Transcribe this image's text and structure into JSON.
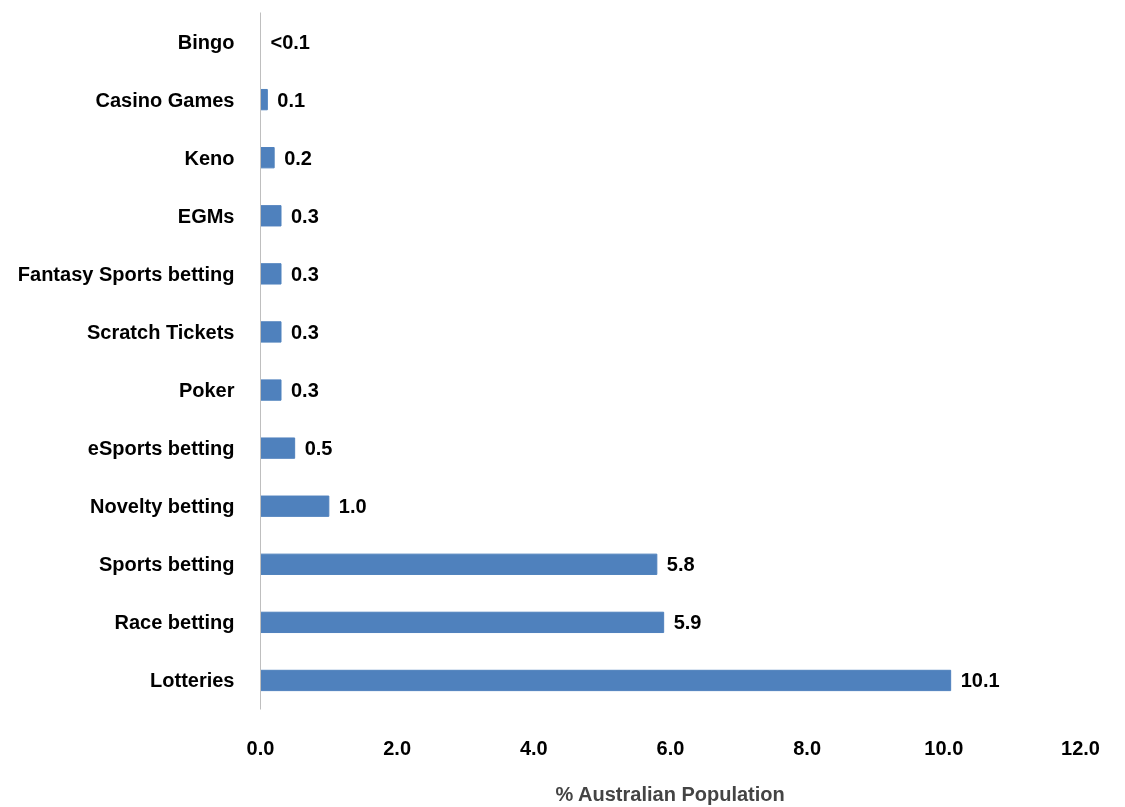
{
  "chart_data": {
    "type": "bar",
    "orientation": "horizontal",
    "xlabel": "% Australian Population",
    "categories": [
      "Bingo",
      "Casino Games",
      "Keno",
      "EGMs",
      "Fantasy Sports betting",
      "Scratch Tickets",
      "Poker",
      "eSports betting",
      "Novelty betting",
      "Sports betting",
      "Race betting",
      "Lotteries"
    ],
    "values": [
      0.0,
      0.1,
      0.2,
      0.3,
      0.3,
      0.3,
      0.3,
      0.5,
      1.0,
      5.8,
      5.9,
      10.1
    ],
    "value_labels": [
      "<0.1",
      "0.1",
      "0.2",
      "0.3",
      "0.3",
      "0.3",
      "0.3",
      "0.5",
      "1.0",
      "5.8",
      "5.9",
      "10.1"
    ],
    "color": "#4f81bd",
    "xlim": [
      0,
      12
    ],
    "xticks": [
      {
        "value": 0,
        "label": "0.0"
      },
      {
        "value": 2,
        "label": "2.0"
      },
      {
        "value": 4,
        "label": "4.0"
      },
      {
        "value": 6,
        "label": "6.0"
      },
      {
        "value": 8,
        "label": "8.0"
      },
      {
        "value": 10,
        "label": "10.0"
      },
      {
        "value": 12,
        "label": "12.0"
      }
    ],
    "grid": false
  }
}
